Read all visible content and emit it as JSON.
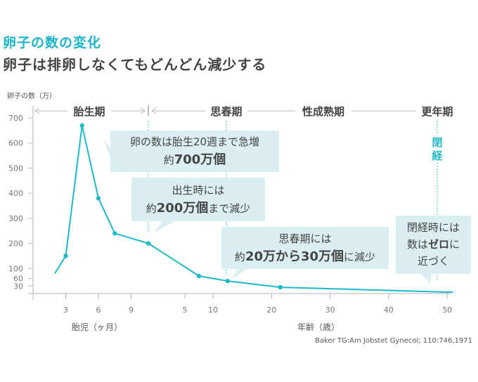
{
  "title": "卵子の数の変化",
  "subtitle": "卵子は排卵しなくてもどんどん減少する",
  "source": "Baker TG:Am Jobstet Gynecol; 110:746,1971",
  "colors": {
    "line": "#1fb9ca",
    "box": "#dbeef1",
    "axis": "#b5b5b5"
  },
  "chart_data": {
    "type": "line",
    "ylabel": "卵子の数（万）",
    "ylim": [
      0,
      700
    ],
    "yticks": [
      30,
      60,
      100,
      200,
      300,
      400,
      500,
      600,
      700
    ],
    "x_segments": [
      {
        "label": "胎児（ヶ月）",
        "unit": "months",
        "ticks": [
          3,
          6,
          9
        ]
      },
      {
        "label": "年齢（歳）",
        "unit": "years",
        "ticks": [
          5,
          10,
          20,
          30,
          40,
          50
        ]
      }
    ],
    "series": [
      {
        "name": "卵子の数",
        "points": [
          {
            "phase": "fetal",
            "x": 2,
            "y": 80,
            "marker": false
          },
          {
            "phase": "fetal",
            "x": 3,
            "y": 150,
            "marker": true
          },
          {
            "phase": "fetal",
            "x": 4.5,
            "y": 670,
            "marker": true
          },
          {
            "phase": "fetal",
            "x": 6,
            "y": 380,
            "marker": true
          },
          {
            "phase": "fetal",
            "x": 7.5,
            "y": 240,
            "marker": true
          },
          {
            "phase": "age",
            "x": 0,
            "y": 200,
            "marker": true
          },
          {
            "phase": "age",
            "x": 7.5,
            "y": 70,
            "marker": true
          },
          {
            "phase": "age",
            "x": 12.5,
            "y": 50,
            "marker": true
          },
          {
            "phase": "age",
            "x": 21.5,
            "y": 25,
            "marker": true
          },
          {
            "phase": "age",
            "x": 51,
            "y": 5,
            "marker": false
          }
        ]
      }
    ],
    "periods": [
      "胎生期",
      "思春期",
      "性成熟期",
      "更年期"
    ],
    "menopause_label": "閉経",
    "annotations": [
      {
        "line1": "卵の数は胎生20週まで急増",
        "pre": "約",
        "bold": "700万個",
        "post": ""
      },
      {
        "line1": "出生時には",
        "pre": "約",
        "bold": "200万個",
        "post": "まで減少"
      },
      {
        "line1": "思春期には",
        "pre": "約",
        "bold": "20万から30万個",
        "post": "に減少"
      },
      {
        "line1": "閉経時には",
        "pre": "数は",
        "bold": "ゼロ",
        "post": "に",
        "line3": "近づく"
      }
    ]
  }
}
